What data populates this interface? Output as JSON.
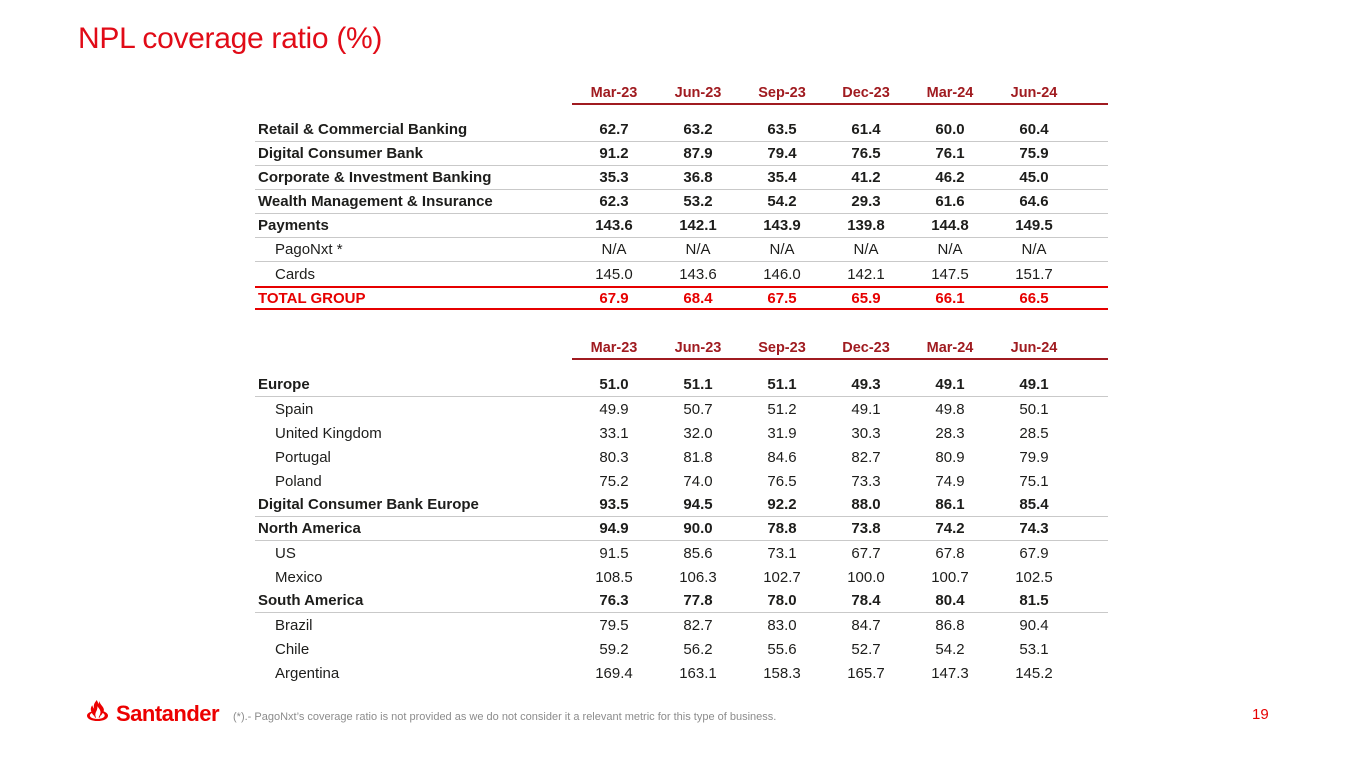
{
  "slide": {
    "title": "NPL coverage ratio (%)",
    "logo_text": "Santander",
    "footnote": "(*).- PagoNxt’s coverage ratio is not provided as we do not consider it a relevant metric for this type of business.",
    "page_number": "19"
  },
  "colors": {
    "accent_red": "#ec0000",
    "bright_red": "#e60000",
    "dark_red_header": "#a01b20",
    "body_text": "#1d1d1b",
    "separator_gray": "#c9c9c9",
    "footnote_gray": "#8c8c8c"
  },
  "columns": [
    "Mar-23",
    "Jun-23",
    "Sep-23",
    "Dec-23",
    "Mar-24",
    "Jun-24"
  ],
  "table1": {
    "rows": [
      {
        "label": "Retail & Commercial Banking",
        "bold": true,
        "sep": true,
        "values": [
          "62.7",
          "63.2",
          "63.5",
          "61.4",
          "60.0",
          "60.4"
        ]
      },
      {
        "label": "Digital Consumer Bank",
        "bold": true,
        "sep": true,
        "values": [
          "91.2",
          "87.9",
          "79.4",
          "76.5",
          "76.1",
          "75.9"
        ]
      },
      {
        "label": "Corporate & Investment Banking",
        "bold": true,
        "sep": true,
        "values": [
          "35.3",
          "36.8",
          "35.4",
          "41.2",
          "46.2",
          "45.0"
        ]
      },
      {
        "label": "Wealth Management & Insurance",
        "bold": true,
        "sep": true,
        "values": [
          "62.3",
          "53.2",
          "54.2",
          "29.3",
          "61.6",
          "64.6"
        ]
      },
      {
        "label": "Payments",
        "bold": true,
        "sep": true,
        "values": [
          "143.6",
          "142.1",
          "143.9",
          "139.8",
          "144.8",
          "149.5"
        ]
      },
      {
        "label": "PagoNxt *",
        "indent": true,
        "sep": true,
        "values": [
          "N/A",
          "N/A",
          "N/A",
          "N/A",
          "N/A",
          "N/A"
        ]
      },
      {
        "label": "Cards",
        "indent": true,
        "values": [
          "145.0",
          "143.6",
          "146.0",
          "142.1",
          "147.5",
          "151.7"
        ]
      },
      {
        "label": "TOTAL GROUP",
        "total": true,
        "values": [
          "67.9",
          "68.4",
          "67.5",
          "65.9",
          "66.1",
          "66.5"
        ]
      }
    ]
  },
  "table2": {
    "rows": [
      {
        "label": "Europe",
        "bold": true,
        "sep": true,
        "values": [
          "51.0",
          "51.1",
          "51.1",
          "49.3",
          "49.1",
          "49.1"
        ]
      },
      {
        "label": "Spain",
        "indent": true,
        "values": [
          "49.9",
          "50.7",
          "51.2",
          "49.1",
          "49.8",
          "50.1"
        ]
      },
      {
        "label": "United Kingdom",
        "indent": true,
        "values": [
          "33.1",
          "32.0",
          "31.9",
          "30.3",
          "28.3",
          "28.5"
        ]
      },
      {
        "label": "Portugal",
        "indent": true,
        "values": [
          "80.3",
          "81.8",
          "84.6",
          "82.7",
          "80.9",
          "79.9"
        ]
      },
      {
        "label": "Poland",
        "indent": true,
        "values": [
          "75.2",
          "74.0",
          "76.5",
          "73.3",
          "74.9",
          "75.1"
        ]
      },
      {
        "label": "Digital Consumer Bank Europe",
        "bold": true,
        "sep": true,
        "values": [
          "93.5",
          "94.5",
          "92.2",
          "88.0",
          "86.1",
          "85.4"
        ]
      },
      {
        "label": "North America",
        "bold": true,
        "sep": true,
        "values": [
          "94.9",
          "90.0",
          "78.8",
          "73.8",
          "74.2",
          "74.3"
        ]
      },
      {
        "label": "US",
        "indent": true,
        "values": [
          "91.5",
          "85.6",
          "73.1",
          "67.7",
          "67.8",
          "67.9"
        ]
      },
      {
        "label": "Mexico",
        "indent": true,
        "values": [
          "108.5",
          "106.3",
          "102.7",
          "100.0",
          "100.7",
          "102.5"
        ]
      },
      {
        "label": "South America",
        "bold": true,
        "sep": true,
        "values": [
          "76.3",
          "77.8",
          "78.0",
          "78.4",
          "80.4",
          "81.5"
        ]
      },
      {
        "label": "Brazil",
        "indent": true,
        "values": [
          "79.5",
          "82.7",
          "83.0",
          "84.7",
          "86.8",
          "90.4"
        ]
      },
      {
        "label": "Chile",
        "indent": true,
        "values": [
          "59.2",
          "56.2",
          "55.6",
          "52.7",
          "54.2",
          "53.1"
        ]
      },
      {
        "label": "Argentina",
        "indent": true,
        "values": [
          "169.4",
          "163.1",
          "158.3",
          "165.7",
          "147.3",
          "145.2"
        ]
      }
    ]
  }
}
